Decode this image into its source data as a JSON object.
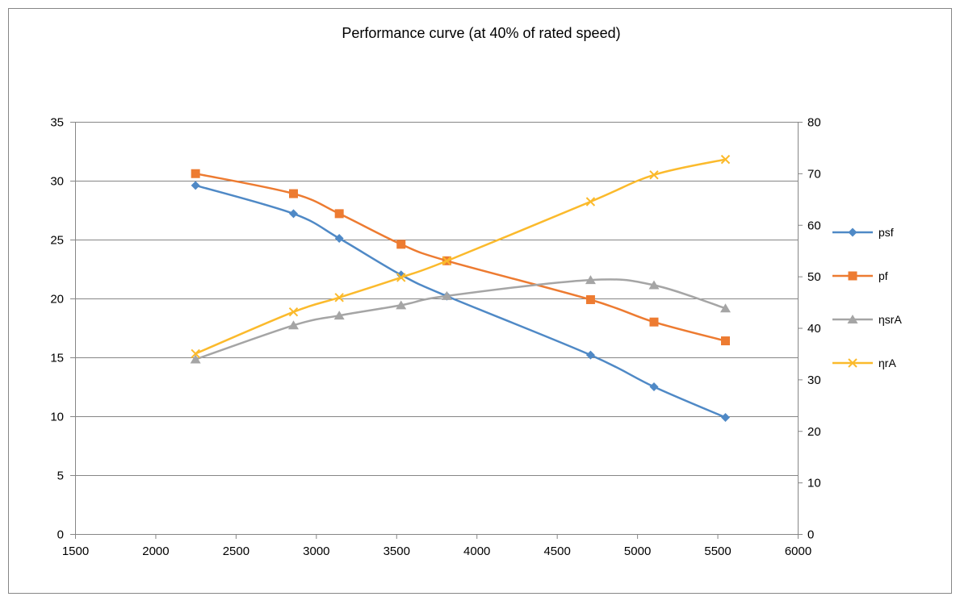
{
  "chart_data": {
    "type": "line",
    "title": "Performance curve (at 40% of rated speed)",
    "xlabel": "",
    "ylabel": "",
    "y2label": "",
    "xlim": [
      1500,
      6000
    ],
    "xticks": [
      1500,
      2000,
      2500,
      3000,
      3500,
      4000,
      4500,
      5000,
      5500,
      6000
    ],
    "ylim": [
      0,
      35
    ],
    "yticks": [
      0,
      5,
      10,
      15,
      20,
      25,
      30,
      35
    ],
    "y2lim": [
      0,
      80
    ],
    "y2ticks": [
      0,
      10,
      20,
      30,
      40,
      50,
      60,
      70,
      80
    ],
    "grid": "horizontal",
    "legend_position": "right",
    "smooth": true,
    "x": [
      2250,
      2860,
      3145,
      3530,
      3815,
      4710,
      5105,
      5550
    ],
    "series": [
      {
        "name": "psf",
        "axis": "left",
        "color": "#4f89c6",
        "marker": "diamond",
        "values": [
          29.6,
          27.2,
          25.1,
          22.0,
          20.2,
          15.2,
          12.5,
          9.9
        ]
      },
      {
        "name": "pf",
        "axis": "left",
        "color": "#ed7b31",
        "marker": "square",
        "values": [
          30.6,
          28.9,
          27.2,
          24.6,
          23.2,
          19.9,
          18.0,
          16.4
        ]
      },
      {
        "name": "ηsrA",
        "axis": "right",
        "color": "#a5a5a5",
        "marker": "triangle",
        "values": [
          33.9,
          40.5,
          42.4,
          44.4,
          46.2,
          49.3,
          48.3,
          43.8
        ]
      },
      {
        "name": "ηrA",
        "axis": "right",
        "color": "#fbba2c",
        "marker": "x",
        "values": [
          35.0,
          43.1,
          45.9,
          49.8,
          53.0,
          64.5,
          69.7,
          72.7
        ]
      }
    ]
  }
}
